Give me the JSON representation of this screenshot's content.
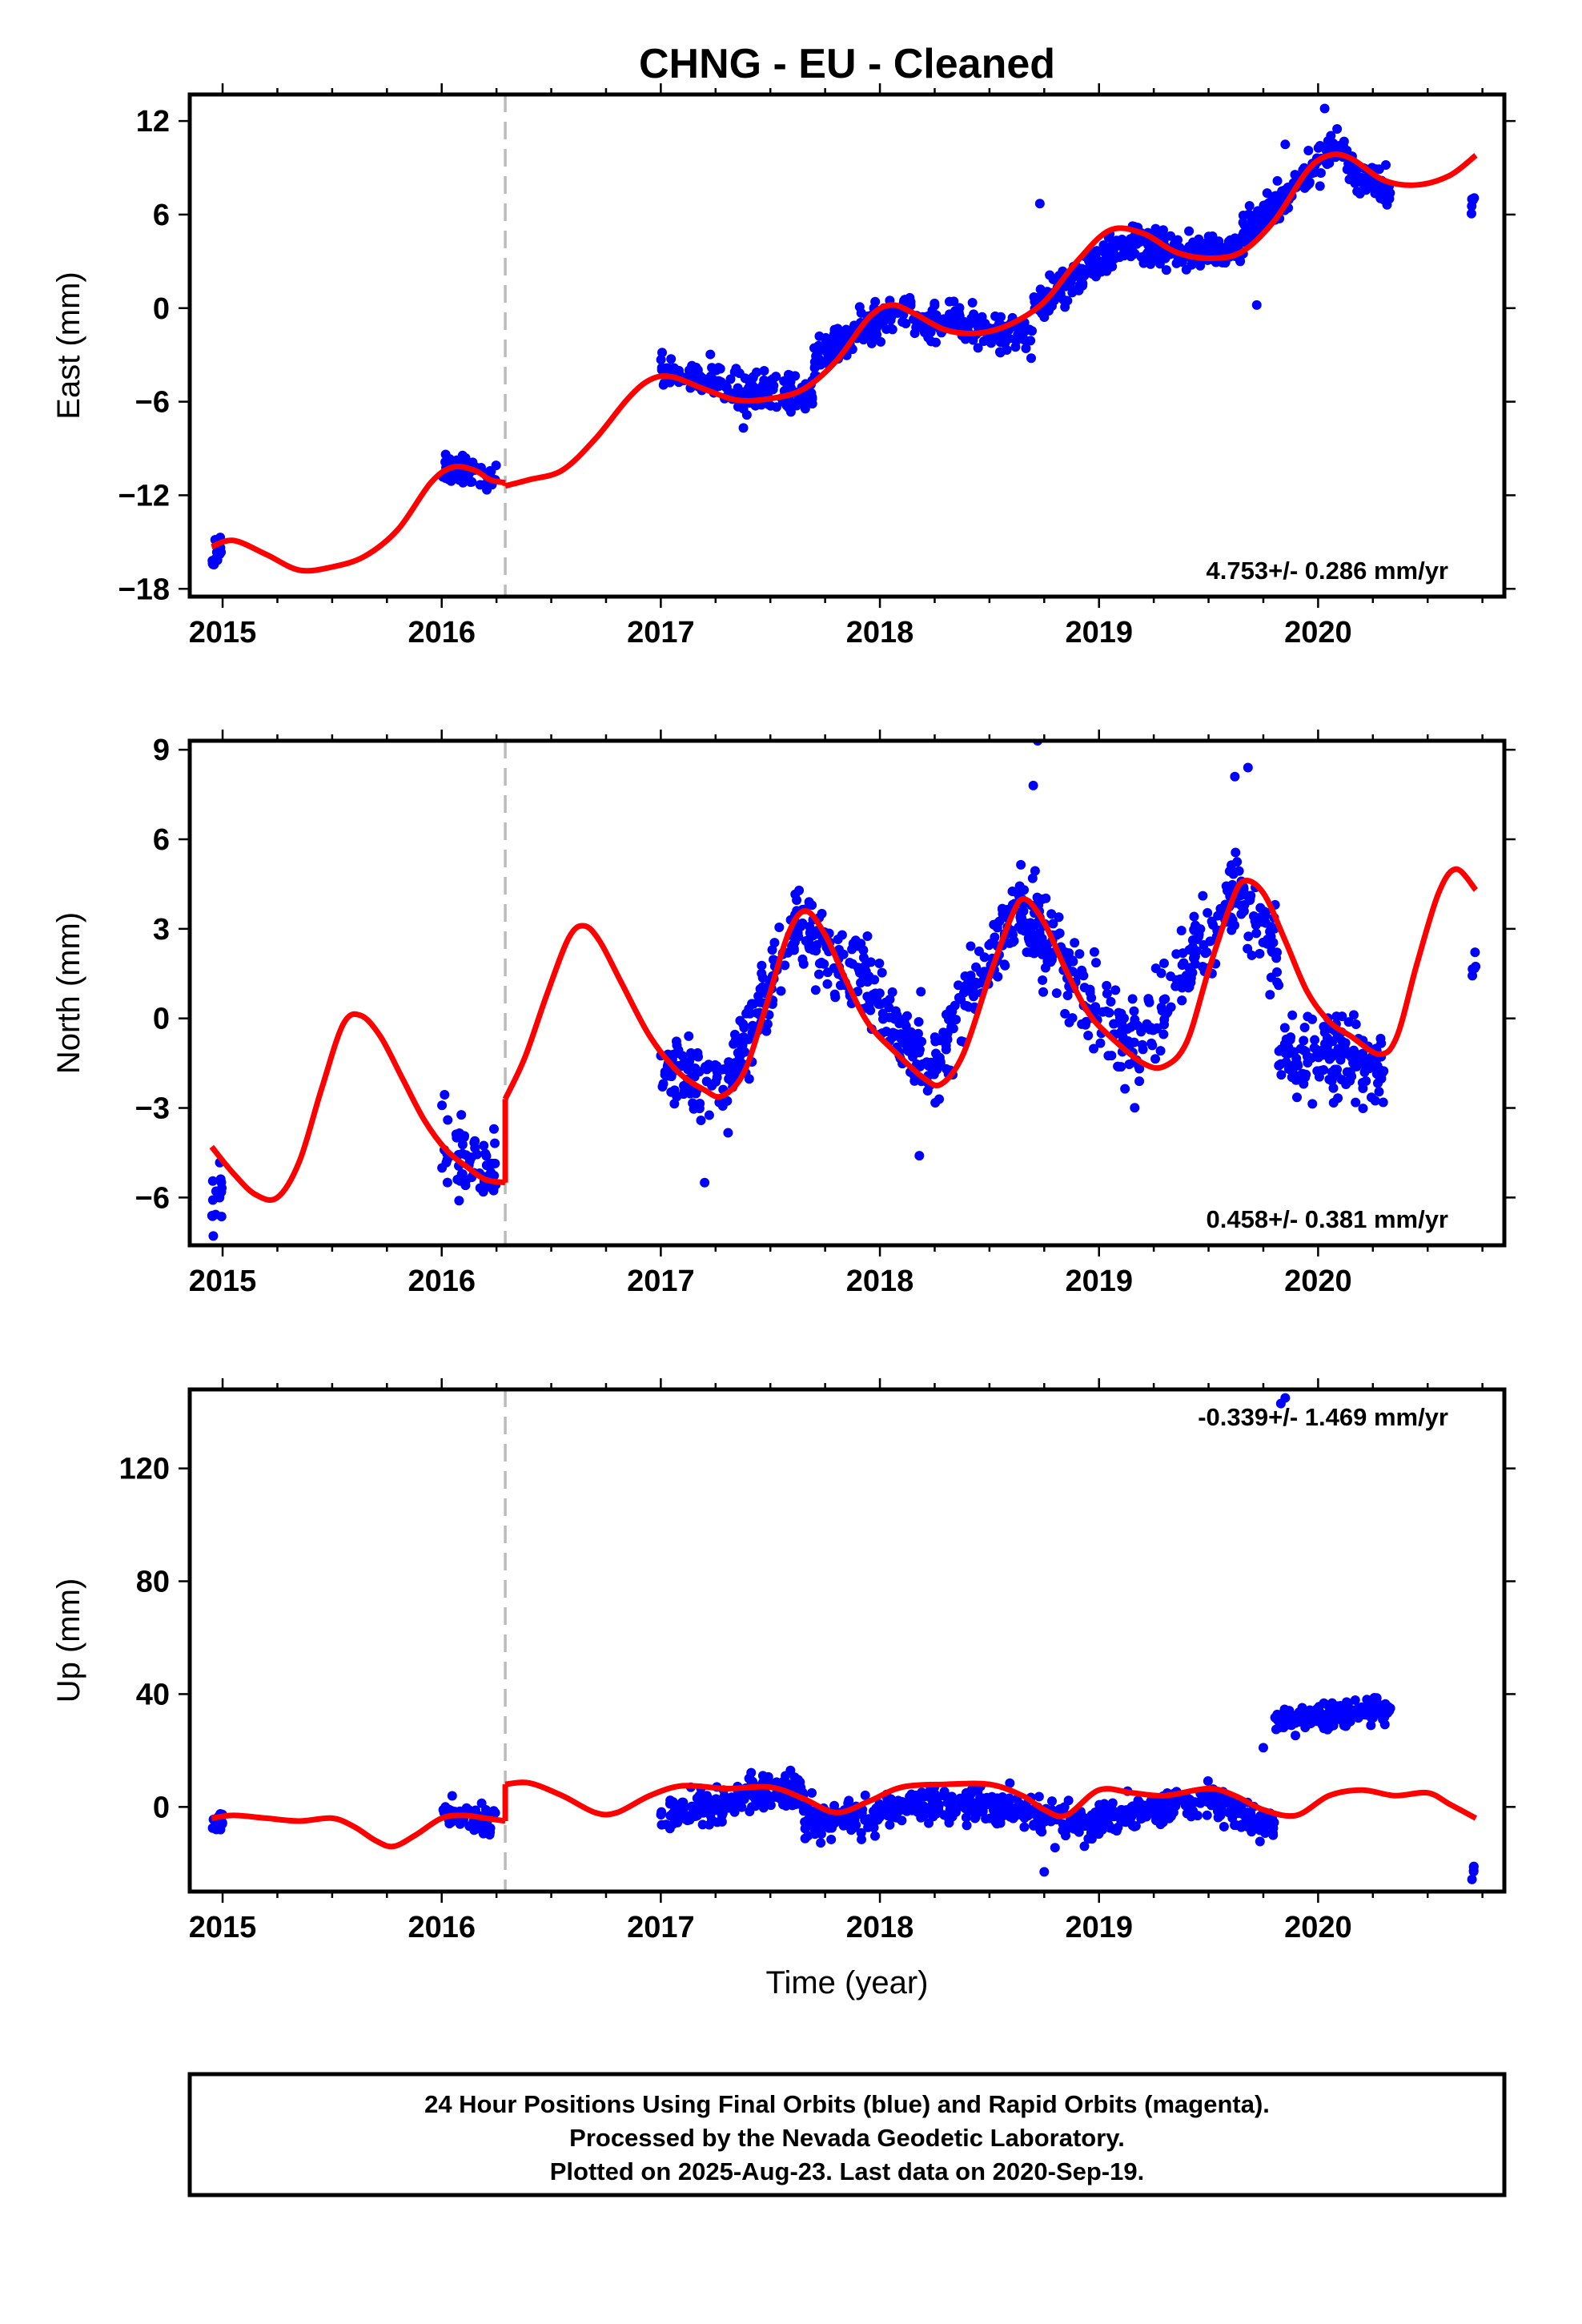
{
  "title": "CHNG  - EU - Cleaned",
  "chart_data": [
    {
      "type": "scatter",
      "component": "East",
      "ylabel": "East (mm)",
      "xlabel": "",
      "xlim": [
        2014.85,
        2020.85
      ],
      "ylim": [
        -18.5,
        13.7
      ],
      "yticks": [
        -18,
        -12,
        -6,
        0,
        6,
        12
      ],
      "ytick_labels": [
        "−18",
        "−12",
        "−6",
        "0",
        "6",
        "12"
      ],
      "xticks": [
        2015,
        2016,
        2017,
        2018,
        2019,
        2020
      ],
      "xtick_labels": [
        "2015",
        "2016",
        "2017",
        "2018",
        "2019",
        "2020"
      ],
      "rate_text": "4.753+/- 0.286 mm/yr",
      "rate_position": "bottom-right",
      "break_year": 2016.29,
      "clusters": [
        {
          "x": [
            2014.95,
            2015.0
          ],
          "y_start": -16.0,
          "y_end": -15.2,
          "spread": 1.2,
          "n": 14
        },
        {
          "x": [
            2016.0,
            2016.25
          ],
          "y_start": -10.2,
          "y_end": -10.8,
          "spread": 0.9,
          "n": 60
        },
        {
          "x": [
            2017.0,
            2017.25
          ],
          "y_start": -4.0,
          "y_end": -4.8,
          "spread": 0.9,
          "n": 70
        },
        {
          "x": [
            2017.25,
            2017.7
          ],
          "y_start": -5.2,
          "y_end": -5.6,
          "spread": 1.1,
          "n": 150
        },
        {
          "x": [
            2017.7,
            2018.15
          ],
          "y_start": -3.2,
          "y_end": 0.4,
          "spread": 1.1,
          "n": 160
        },
        {
          "x": [
            2018.15,
            2018.7
          ],
          "y_start": -0.8,
          "y_end": -1.6,
          "spread": 1.0,
          "n": 170
        },
        {
          "x": [
            2018.7,
            2019.2
          ],
          "y_start": 0.2,
          "y_end": 4.6,
          "spread": 1.1,
          "n": 170
        },
        {
          "x": [
            2019.2,
            2019.65
          ],
          "y_start": 3.8,
          "y_end": 3.6,
          "spread": 1.0,
          "n": 150
        },
        {
          "x": [
            2019.65,
            2020.05
          ],
          "y_start": 4.6,
          "y_end": 9.8,
          "spread": 1.1,
          "n": 140
        },
        {
          "x": [
            2020.05,
            2020.33
          ],
          "y_start": 10.2,
          "y_end": 7.2,
          "spread": 1.1,
          "n": 90
        },
        {
          "x": [
            2020.7,
            2020.72
          ],
          "y_start": 6.5,
          "y_end": 7.8,
          "spread": 0.5,
          "n": 5
        }
      ],
      "outliers": [
        [
          2018.73,
          6.7
        ],
        [
          2019.85,
          10.5
        ],
        [
          2019.72,
          0.2
        ],
        [
          2020.03,
          12.8
        ]
      ],
      "model_curve": {
        "segments": [
          {
            "x": [
              2014.95,
              2015.05,
              2015.2,
              2015.35,
              2015.5,
              2015.65,
              2015.8,
              2015.95,
              2016.05,
              2016.15,
              2016.22,
              2016.29
            ],
            "y": [
              -15.3,
              -14.9,
              -15.8,
              -16.8,
              -16.6,
              -15.9,
              -14.2,
              -11.2,
              -10.2,
              -10.4,
              -11.0,
              -11.2
            ]
          },
          {
            "x": [
              2016.29,
              2016.4,
              2016.55,
              2016.7,
              2016.85,
              2016.95,
              2017.05,
              2017.2,
              2017.35,
              2017.5,
              2017.65,
              2017.8,
              2017.95,
              2018.05,
              2018.15,
              2018.3,
              2018.45,
              2018.6,
              2018.75,
              2018.9,
              2019.05,
              2019.2,
              2019.35,
              2019.5,
              2019.65,
              2019.8,
              2019.95,
              2020.05,
              2020.15,
              2020.3,
              2020.45,
              2020.6,
              2020.72
            ],
            "y": [
              -11.4,
              -11.0,
              -10.4,
              -8.4,
              -5.8,
              -4.6,
              -4.4,
              -5.2,
              -5.9,
              -5.8,
              -5.2,
              -3.4,
              -0.6,
              0.2,
              -0.3,
              -1.4,
              -1.6,
              -1.0,
              0.4,
              3.0,
              5.0,
              4.8,
              3.6,
              3.2,
              3.6,
              5.6,
              8.8,
              9.8,
              9.6,
              8.2,
              7.9,
              8.5,
              9.8
            ]
          }
        ]
      }
    },
    {
      "type": "scatter",
      "component": "North",
      "ylabel": "North (mm)",
      "xlabel": "",
      "xlim": [
        2014.85,
        2020.85
      ],
      "ylim": [
        -7.6,
        9.3
      ],
      "yticks": [
        -6,
        -3,
        0,
        3,
        6,
        9
      ],
      "ytick_labels": [
        "−6",
        "−3",
        "0",
        "3",
        "6",
        "9"
      ],
      "xticks": [
        2015,
        2016,
        2017,
        2018,
        2019,
        2020
      ],
      "xtick_labels": [
        "2015",
        "2016",
        "2017",
        "2018",
        "2019",
        "2020"
      ],
      "rate_text": "0.458+/- 0.381 mm/yr",
      "rate_position": "bottom-right",
      "break_year": 2016.29,
      "clusters": [
        {
          "x": [
            2014.95,
            2015.0
          ],
          "y_start": -6.5,
          "y_end": -5.8,
          "spread": 0.9,
          "n": 14
        },
        {
          "x": [
            2016.0,
            2016.25
          ],
          "y_start": -4.2,
          "y_end": -5.2,
          "spread": 1.2,
          "n": 60
        },
        {
          "x": [
            2017.0,
            2017.3
          ],
          "y_start": -1.6,
          "y_end": -2.6,
          "spread": 1.1,
          "n": 80
        },
        {
          "x": [
            2017.3,
            2017.62
          ],
          "y_start": -2.2,
          "y_end": 3.4,
          "spread": 1.2,
          "n": 100
        },
        {
          "x": [
            2017.62,
            2018.0
          ],
          "y_start": 3.0,
          "y_end": 1.0,
          "spread": 1.2,
          "n": 110
        },
        {
          "x": [
            2018.0,
            2018.25
          ],
          "y_start": 0.4,
          "y_end": -1.8,
          "spread": 1.1,
          "n": 80
        },
        {
          "x": [
            2018.25,
            2018.65
          ],
          "y_start": -1.2,
          "y_end": 4.0,
          "spread": 1.3,
          "n": 120
        },
        {
          "x": [
            2018.65,
            2019.2
          ],
          "y_start": 3.6,
          "y_end": -1.2,
          "spread": 1.3,
          "n": 160
        },
        {
          "x": [
            2019.2,
            2019.65
          ],
          "y_start": -0.6,
          "y_end": 4.4,
          "spread": 1.4,
          "n": 130
        },
        {
          "x": [
            2019.65,
            2019.82
          ],
          "y_start": 4.2,
          "y_end": 2.0,
          "spread": 1.3,
          "n": 45
        },
        {
          "x": [
            2019.82,
            2020.3
          ],
          "y_start": -1.0,
          "y_end": -1.6,
          "spread": 1.2,
          "n": 150
        },
        {
          "x": [
            2020.7,
            2020.72
          ],
          "y_start": 1.4,
          "y_end": 2.0,
          "spread": 0.3,
          "n": 5
        }
      ],
      "outliers": [
        [
          2018.72,
          9.3
        ],
        [
          2019.68,
          8.4
        ],
        [
          2018.7,
          7.8
        ],
        [
          2017.2,
          -5.5
        ],
        [
          2018.18,
          -4.6
        ],
        [
          2019.62,
          8.1
        ]
      ],
      "model_curve": {
        "segments": [
          {
            "x": [
              2014.95,
              2015.05,
              2015.15,
              2015.25,
              2015.35,
              2015.45,
              2015.55,
              2015.63,
              2015.72,
              2015.82,
              2015.92,
              2016.02,
              2016.12,
              2016.2,
              2016.29
            ],
            "y": [
              -4.3,
              -5.2,
              -5.9,
              -6.0,
              -4.8,
              -2.4,
              -0.2,
              0.1,
              -0.6,
              -2.0,
              -3.4,
              -4.4,
              -5.0,
              -5.4,
              -5.5
            ]
          },
          {
            "x": [
              2016.29,
              2016.38,
              2016.48,
              2016.58,
              2016.65,
              2016.72,
              2016.82,
              2016.95,
              2017.08,
              2017.2,
              2017.28,
              2017.38,
              2017.48,
              2017.58,
              2017.66,
              2017.75,
              2017.85,
              2017.95,
              2018.08,
              2018.2,
              2018.28,
              2018.38,
              2018.5,
              2018.6,
              2018.66,
              2018.75,
              2018.85,
              2018.95,
              2019.05,
              2019.2,
              2019.3,
              2019.4,
              2019.5,
              2019.6,
              2019.66,
              2019.75,
              2019.85,
              2019.95,
              2020.05,
              2020.15,
              2020.28,
              2020.36,
              2020.45,
              2020.55,
              2020.63,
              2020.72
            ],
            "y": [
              -2.7,
              -1.3,
              0.8,
              2.7,
              3.1,
              2.6,
              1.2,
              -0.6,
              -1.8,
              -2.4,
              -2.6,
              -1.8,
              0.4,
              2.8,
              3.6,
              2.8,
              1.2,
              -0.2,
              -1.2,
              -2.0,
              -2.2,
              -1.2,
              1.4,
              3.4,
              4.0,
              3.2,
              1.6,
              0.2,
              -0.6,
              -1.5,
              -1.6,
              -0.8,
              1.6,
              3.8,
              4.6,
              4.2,
              2.6,
              0.9,
              -0.1,
              -0.6,
              -1.2,
              -0.6,
              1.8,
              4.2,
              5.0,
              4.3
            ]
          }
        ]
      }
    },
    {
      "type": "scatter",
      "component": "Up",
      "ylabel": "Up (mm)",
      "xlabel": "Time (year)",
      "xlim": [
        2014.85,
        2020.85
      ],
      "ylim": [
        -30,
        148
      ],
      "yticks": [
        0,
        40,
        80,
        120
      ],
      "ytick_labels": [
        "0",
        "40",
        "80",
        "120"
      ],
      "xticks": [
        2015,
        2016,
        2017,
        2018,
        2019,
        2020
      ],
      "xtick_labels": [
        "2015",
        "2016",
        "2017",
        "2018",
        "2019",
        "2020"
      ],
      "rate_text": "-0.339+/- 1.469 mm/yr",
      "rate_position": "top-right",
      "break_year": 2016.29,
      "clusters": [
        {
          "x": [
            2014.95,
            2015.0
          ],
          "y_start": -8,
          "y_end": -4,
          "spread": 5,
          "n": 14
        },
        {
          "x": [
            2016.0,
            2016.25
          ],
          "y_start": -2,
          "y_end": -5,
          "spread": 5,
          "n": 60
        },
        {
          "x": [
            2017.0,
            2017.35
          ],
          "y_start": -4,
          "y_end": 2,
          "spread": 5,
          "n": 100
        },
        {
          "x": [
            2017.35,
            2017.65
          ],
          "y_start": 5,
          "y_end": 6,
          "spread": 6,
          "n": 100
        },
        {
          "x": [
            2017.65,
            2018.0
          ],
          "y_start": -6,
          "y_end": -3,
          "spread": 6,
          "n": 110
        },
        {
          "x": [
            2018.0,
            2018.5
          ],
          "y_start": -1,
          "y_end": 1,
          "spread": 5,
          "n": 150
        },
        {
          "x": [
            2018.5,
            2019.0
          ],
          "y_start": 0,
          "y_end": -7,
          "spread": 6,
          "n": 150
        },
        {
          "x": [
            2019.0,
            2019.5
          ],
          "y_start": -4,
          "y_end": 2,
          "spread": 5,
          "n": 150
        },
        {
          "x": [
            2019.5,
            2019.8
          ],
          "y_start": 4,
          "y_end": -8,
          "spread": 6,
          "n": 90
        },
        {
          "x": [
            2019.8,
            2020.33
          ],
          "y_start": 30,
          "y_end": 35,
          "spread": 4,
          "n": 170
        },
        {
          "x": [
            2020.7,
            2020.72
          ],
          "y_start": -26,
          "y_end": -18,
          "spread": 3,
          "n": 5
        }
      ],
      "outliers": [
        [
          2019.85,
          145
        ],
        [
          2019.83,
          143
        ],
        [
          2018.75,
          -23
        ],
        [
          2019.75,
          21
        ]
      ],
      "model_curve": {
        "segments": [
          {
            "x": [
              2014.95,
              2015.05,
              2015.2,
              2015.35,
              2015.5,
              2015.6,
              2015.7,
              2015.78,
              2015.88,
              2016.0,
              2016.1,
              2016.2,
              2016.29
            ],
            "y": [
              -4,
              -3,
              -4,
              -5,
              -4,
              -7,
              -12,
              -14,
              -10,
              -4,
              -3,
              -4,
              -5
            ]
          },
          {
            "x": [
              2016.29,
              2016.4,
              2016.55,
              2016.7,
              2016.8,
              2016.95,
              2017.1,
              2017.3,
              2017.5,
              2017.65,
              2017.8,
              2017.95,
              2018.1,
              2018.3,
              2018.5,
              2018.65,
              2018.75,
              2018.85,
              2019.0,
              2019.15,
              2019.3,
              2019.5,
              2019.62,
              2019.75,
              2019.9,
              2020.05,
              2020.2,
              2020.35,
              2020.5,
              2020.6,
              2020.72
            ],
            "y": [
              8,
              8.5,
              4,
              -2,
              -2,
              4,
              7.5,
              6.5,
              7,
              3,
              -2,
              2,
              7,
              8,
              8,
              4,
              -1,
              -3,
              6,
              5,
              4,
              6.5,
              4,
              -1,
              -3,
              4,
              6,
              4,
              5,
              1,
              -4
            ]
          }
        ]
      }
    }
  ],
  "footer": {
    "line1": "24 Hour Positions Using Final Orbits (blue) and Rapid Orbits (magenta).",
    "line2": "Processed by the Nevada Geodetic Laboratory.",
    "line3": "Plotted on 2025-Aug-23. Last data on 2020-Sep-19."
  },
  "colors": {
    "points": "#0000ff",
    "model": "#ff0000",
    "break_line": "#bbbbbb",
    "frame": "#000000"
  }
}
